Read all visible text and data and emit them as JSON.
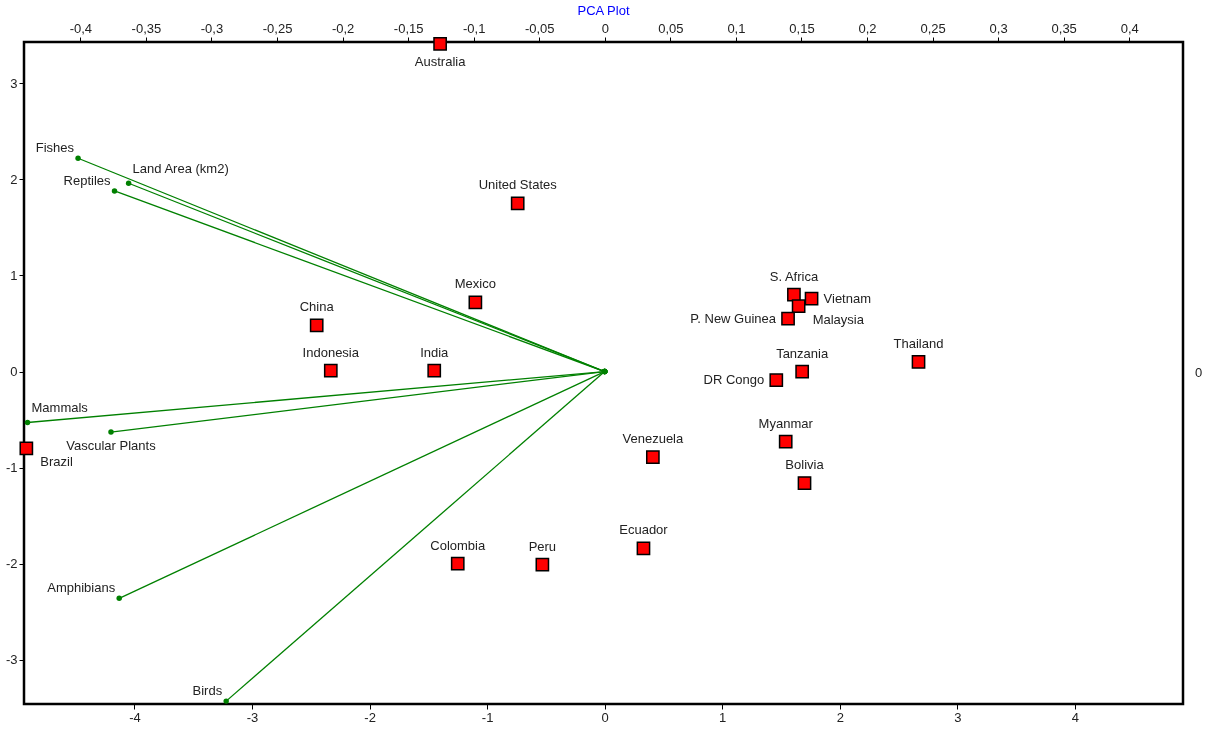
{
  "chart_data": {
    "type": "scatter",
    "title": "PCA Plot",
    "grid": false,
    "xlim": [
      -4.94,
      4.92
    ],
    "ylim": [
      -3.46,
      3.43
    ],
    "xticks": [
      -4,
      -3,
      -2,
      -1,
      0,
      1,
      2,
      3,
      4
    ],
    "yticks": [
      -3,
      -2,
      -1,
      0,
      1,
      2,
      3
    ],
    "x2lim": [
      -0.443,
      0.441
    ],
    "x2ticks": [
      {
        "value": -0.4,
        "label": "-0,4"
      },
      {
        "value": -0.35,
        "label": "-0,35"
      },
      {
        "value": -0.3,
        "label": "-0,3"
      },
      {
        "value": -0.25,
        "label": "-0,25"
      },
      {
        "value": -0.2,
        "label": "-0,2"
      },
      {
        "value": -0.15,
        "label": "-0,15"
      },
      {
        "value": -0.1,
        "label": "-0,1"
      },
      {
        "value": -0.05,
        "label": "-0,05"
      },
      0,
      {
        "value": 0.05,
        "label": "0,05"
      },
      {
        "value": 0.1,
        "label": "0,1"
      },
      {
        "value": 0.15,
        "label": "0,15"
      },
      {
        "value": 0.2,
        "label": "0,2"
      },
      {
        "value": 0.25,
        "label": "0,25"
      },
      {
        "value": 0.3,
        "label": "0,3"
      },
      {
        "value": 0.35,
        "label": "0,35"
      },
      {
        "value": 0.4,
        "label": "0,4"
      }
    ],
    "series": [
      {
        "color": "#ff0000",
        "marker": "square",
        "x": [
          -1.4,
          -0.74,
          -1.1,
          -2.45,
          -2.33,
          -1.45,
          -4.92,
          0.41,
          0.33,
          -1.25,
          -0.53,
          1.61,
          1.76,
          1.65,
          1.56,
          1.68,
          1.46,
          2.67,
          1.54,
          1.7
        ],
        "values": [
          3.41,
          1.75,
          0.72,
          0.48,
          0.01,
          0.01,
          -0.8,
          -0.89,
          -1.84,
          -2.0,
          -2.01,
          0.8,
          0.76,
          0.68,
          0.55,
          0.0,
          -0.09,
          0.1,
          -0.73,
          -1.16
        ]
      },
      {
        "type": "line",
        "name": "Fishes",
        "color": "#008000",
        "x": [
          0,
          -4.48
        ],
        "values": [
          0,
          2.22
        ]
      },
      {
        "type": "line",
        "name": "Land Area (km2)",
        "color": "#008000",
        "x": [
          0,
          -4.05
        ],
        "values": [
          0,
          1.96
        ]
      },
      {
        "type": "line",
        "name": "Reptiles",
        "color": "#008000",
        "x": [
          0,
          -4.17
        ],
        "values": [
          0,
          1.88
        ]
      },
      {
        "type": "line",
        "name": "Mammals",
        "color": "#008000",
        "x": [
          0,
          -4.91
        ],
        "values": [
          0,
          -0.53
        ]
      },
      {
        "type": "line",
        "name": "Vascular Plants",
        "color": "#008000",
        "x": [
          0,
          -4.2
        ],
        "values": [
          0,
          -0.63
        ]
      },
      {
        "type": "line",
        "name": "Amphibians",
        "color": "#008000",
        "x": [
          0,
          -4.13
        ],
        "values": [
          0,
          -2.36
        ]
      },
      {
        "type": "line",
        "name": "Birds",
        "color": "#008000",
        "x": [
          0,
          -3.22
        ],
        "values": [
          0,
          -3.43
        ]
      }
    ],
    "annotations": [
      "0",
      {
        "text": "Australia",
        "x": -1.4,
        "y": 3.41
      },
      {
        "text": "United States",
        "x": -0.74,
        "y": 1.75
      },
      {
        "text": "Mexico",
        "x": -1.1,
        "y": 0.72
      },
      {
        "text": "China",
        "x": -2.45,
        "y": 0.48
      },
      {
        "text": "Indonesia",
        "x": -2.33,
        "y": 0.01
      },
      {
        "text": "India",
        "x": -1.45,
        "y": 0.01
      },
      {
        "text": "Brazil",
        "x": -4.92,
        "y": -0.8
      },
      {
        "text": "Venezuela",
        "x": 0.41,
        "y": -0.89
      },
      {
        "text": "Ecuador",
        "x": 0.33,
        "y": -1.84
      },
      {
        "text": "Colombia",
        "x": -1.25,
        "y": -2.0
      },
      {
        "text": "Peru",
        "x": -0.53,
        "y": -2.01
      },
      {
        "text": "S. Africa",
        "x": 1.61,
        "y": 0.8
      },
      {
        "text": "Vietnam",
        "x": 1.76,
        "y": 0.76
      },
      {
        "text": "Malaysia",
        "x": 1.65,
        "y": 0.68
      },
      {
        "text": "P. New Guinea",
        "x": 1.56,
        "y": 0.55
      },
      {
        "text": "Tanzania",
        "x": 1.68,
        "y": 0.0
      },
      {
        "text": "DR Congo",
        "x": 1.46,
        "y": -0.09
      },
      {
        "text": "Thailand",
        "x": 2.67,
        "y": 0.1
      },
      {
        "text": "Myanmar",
        "x": 1.54,
        "y": -0.73
      },
      {
        "text": "Bolivia",
        "x": 1.7,
        "y": -1.16
      }
    ]
  }
}
